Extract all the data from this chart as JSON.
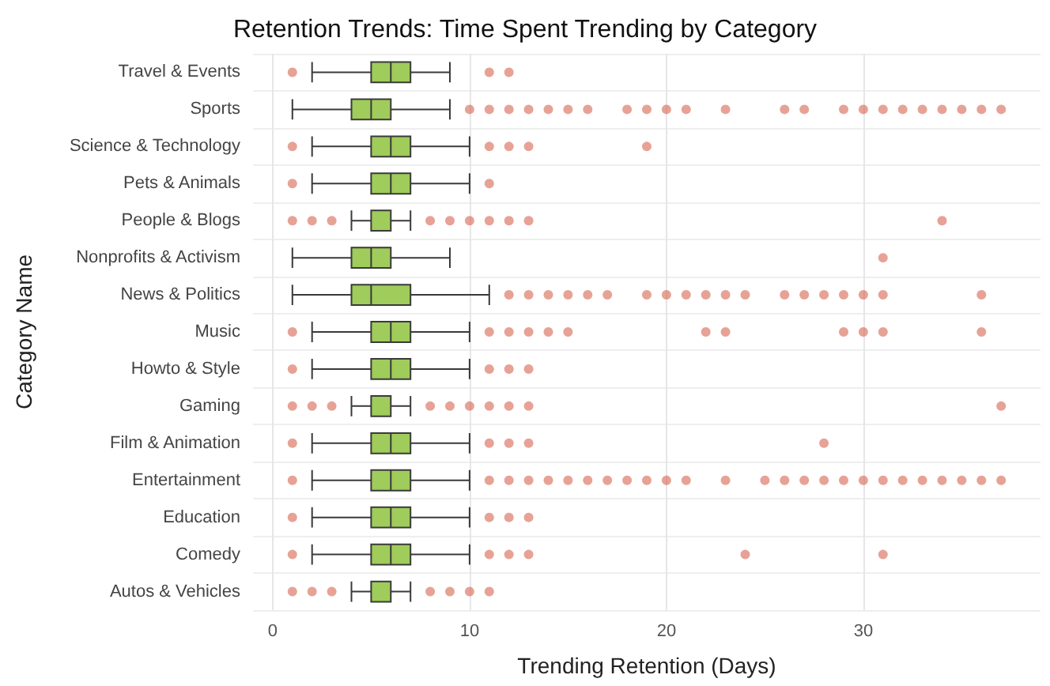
{
  "chart_data": {
    "type": "box",
    "orientation": "horizontal",
    "title": "Retention Trends: Time Spent Trending by Category",
    "xlabel": "Trending Retention (Days)",
    "ylabel": "Category Name",
    "categories": [
      "Travel & Events",
      "Sports",
      "Science & Technology",
      "Pets & Animals",
      "People & Blogs",
      "Nonprofits & Activism",
      "News & Politics",
      "Music",
      "Howto & Style",
      "Gaming",
      "Film & Animation",
      "Entertainment",
      "Education",
      "Comedy",
      "Autos & Vehicles"
    ],
    "series": [
      {
        "color": "#9fcc5a",
        "boxes": [
          {
            "low": 2,
            "q1": 5,
            "median": 6,
            "q3": 7,
            "high": 9,
            "outliers": [
              1,
              11,
              12
            ]
          },
          {
            "low": 1,
            "q1": 4,
            "median": 5,
            "q3": 6,
            "high": 9,
            "outliers": [
              10,
              11,
              12,
              13,
              14,
              15,
              16,
              18,
              19,
              20,
              21,
              23,
              26,
              27,
              29,
              30,
              31,
              32,
              33,
              34,
              35,
              36,
              37
            ]
          },
          {
            "low": 2,
            "q1": 5,
            "median": 6,
            "q3": 7,
            "high": 10,
            "outliers": [
              1,
              11,
              12,
              13,
              19
            ]
          },
          {
            "low": 2,
            "q1": 5,
            "median": 6,
            "q3": 7,
            "high": 10,
            "outliers": [
              1,
              11
            ]
          },
          {
            "low": 4,
            "q1": 5,
            "median": 6,
            "q3": 6,
            "high": 7,
            "outliers": [
              1,
              2,
              3,
              8,
              9,
              10,
              11,
              12,
              13,
              34
            ]
          },
          {
            "low": 1,
            "q1": 4,
            "median": 5,
            "q3": 6,
            "high": 9,
            "outliers": [
              31
            ]
          },
          {
            "low": 1,
            "q1": 4,
            "median": 5,
            "q3": 7,
            "high": 11,
            "outliers": [
              12,
              13,
              14,
              15,
              16,
              17,
              19,
              20,
              21,
              22,
              23,
              24,
              26,
              27,
              28,
              29,
              30,
              31,
              36
            ]
          },
          {
            "low": 2,
            "q1": 5,
            "median": 6,
            "q3": 7,
            "high": 10,
            "outliers": [
              1,
              11,
              12,
              13,
              14,
              15,
              22,
              23,
              29,
              30,
              31,
              36
            ]
          },
          {
            "low": 2,
            "q1": 5,
            "median": 6,
            "q3": 7,
            "high": 10,
            "outliers": [
              1,
              11,
              12,
              13
            ]
          },
          {
            "low": 4,
            "q1": 5,
            "median": 6,
            "q3": 6,
            "high": 7,
            "outliers": [
              1,
              2,
              3,
              8,
              9,
              10,
              11,
              12,
              13,
              37
            ]
          },
          {
            "low": 2,
            "q1": 5,
            "median": 6,
            "q3": 7,
            "high": 10,
            "outliers": [
              1,
              11,
              12,
              13,
              28
            ]
          },
          {
            "low": 2,
            "q1": 5,
            "median": 6,
            "q3": 7,
            "high": 10,
            "outliers": [
              1,
              11,
              12,
              13,
              14,
              15,
              16,
              17,
              18,
              19,
              20,
              21,
              23,
              25,
              26,
              27,
              28,
              29,
              30,
              31,
              32,
              33,
              34,
              35,
              36,
              37
            ]
          },
          {
            "low": 2,
            "q1": 5,
            "median": 6,
            "q3": 7,
            "high": 10,
            "outliers": [
              1,
              11,
              12,
              13
            ]
          },
          {
            "low": 2,
            "q1": 5,
            "median": 6,
            "q3": 7,
            "high": 10,
            "outliers": [
              1,
              11,
              12,
              13,
              24,
              31
            ]
          },
          {
            "low": 4,
            "q1": 5,
            "median": 6,
            "q3": 6,
            "high": 7,
            "outliers": [
              1,
              2,
              3,
              8,
              9,
              10,
              11
            ]
          }
        ]
      }
    ],
    "xlim": [
      -1,
      39
    ],
    "xticks": [
      0,
      10,
      20,
      30
    ],
    "grid": true
  }
}
